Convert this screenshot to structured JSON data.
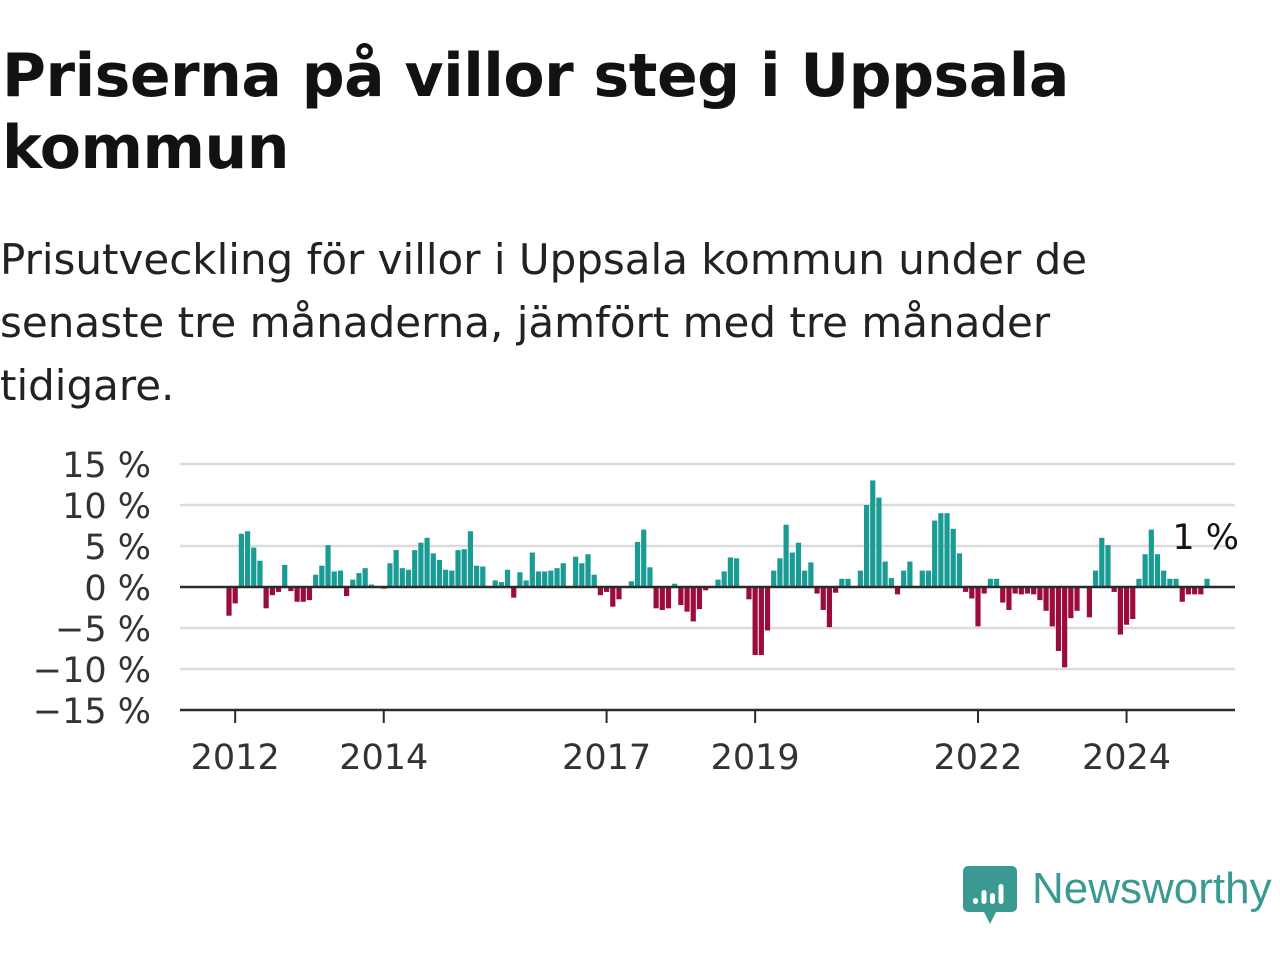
{
  "title": "Priserna på villor steg i Uppsala kommun",
  "subtitle": "Prisutveckling för villor i Uppsala kommun under de senaste tre månaderna, jämfört med tre månader tidigare.",
  "brand": "Newsworthy",
  "colors": {
    "positive": "#1a9c94",
    "negative": "#9b0c3c",
    "grid": "#dcdcdc",
    "axis": "#2b2b2b",
    "brand": "#3a9a92"
  },
  "chart_data": {
    "type": "bar",
    "x_unit": "month",
    "ylim": [
      -15,
      15
    ],
    "y_ticks": [
      15,
      10,
      5,
      0,
      -5,
      -10,
      -15
    ],
    "y_tick_labels": [
      "15 %",
      "10 %",
      "5 %",
      "0 %",
      "−5 %",
      "−10 %",
      "−15 %"
    ],
    "x_ticks": [
      "2012",
      "2014",
      "2017",
      "2019",
      "2022",
      "2024"
    ],
    "grid": true,
    "annotation": "1 %",
    "series": [
      {
        "start": "2011-12",
        "values": [
          -3.5,
          -2,
          6.5,
          6.8,
          4.8,
          3.2,
          -2.6,
          -1,
          -0.6,
          2.7,
          -0.5,
          -1.8,
          -1.8,
          -1.6,
          1.5,
          2.6,
          5.1,
          1.9,
          2,
          -1.1,
          0.9,
          1.7,
          2.3,
          0.3,
          0,
          -0.2,
          2.9,
          4.5,
          2.3,
          2.1,
          4.5,
          5.4,
          6,
          4.1,
          3.3,
          2.1,
          2,
          4.5,
          4.6,
          6.8,
          2.6,
          2.5,
          0,
          0.8,
          0.6,
          2.1,
          -1.3,
          1.8,
          0.8,
          4.2,
          1.9,
          1.9,
          2,
          2.3,
          2.9,
          0,
          3.7,
          2.9,
          4,
          1.5,
          -1,
          -0.6,
          -2.4,
          -1.5,
          0,
          0.7,
          5.5,
          7,
          2.4,
          -2.6,
          -2.8,
          -2.6,
          0.4,
          -2.2,
          -3,
          -4.2,
          -2.7,
          -0.4,
          0,
          0.9,
          1.9,
          3.6,
          3.5,
          0,
          -1.5,
          -8.3,
          -8.3,
          -5.3,
          2,
          3.5,
          7.6,
          4.2,
          5.4,
          2,
          3,
          -0.8,
          -2.8,
          -4.9,
          -0.7,
          1,
          1,
          0,
          2,
          10,
          13,
          10.9,
          3.1,
          1.1,
          -0.9,
          2,
          3.1,
          0,
          2,
          2,
          8.1,
          9,
          9,
          7.1,
          4.1,
          -0.6,
          -1.4,
          -4.8,
          -0.8,
          1,
          1,
          -1.9,
          -2.8,
          -0.8,
          -0.9,
          -0.8,
          -0.9,
          -1.6,
          -2.9,
          -4.8,
          -7.8,
          -9.8,
          -3.8,
          -2.9,
          0,
          -3.7,
          2,
          6,
          5.1,
          -0.6,
          -5.8,
          -4.6,
          -3.9,
          1,
          4,
          7,
          4,
          2,
          1,
          1,
          -1.8,
          -0.9,
          -0.9,
          -0.9,
          1
        ]
      }
    ]
  }
}
